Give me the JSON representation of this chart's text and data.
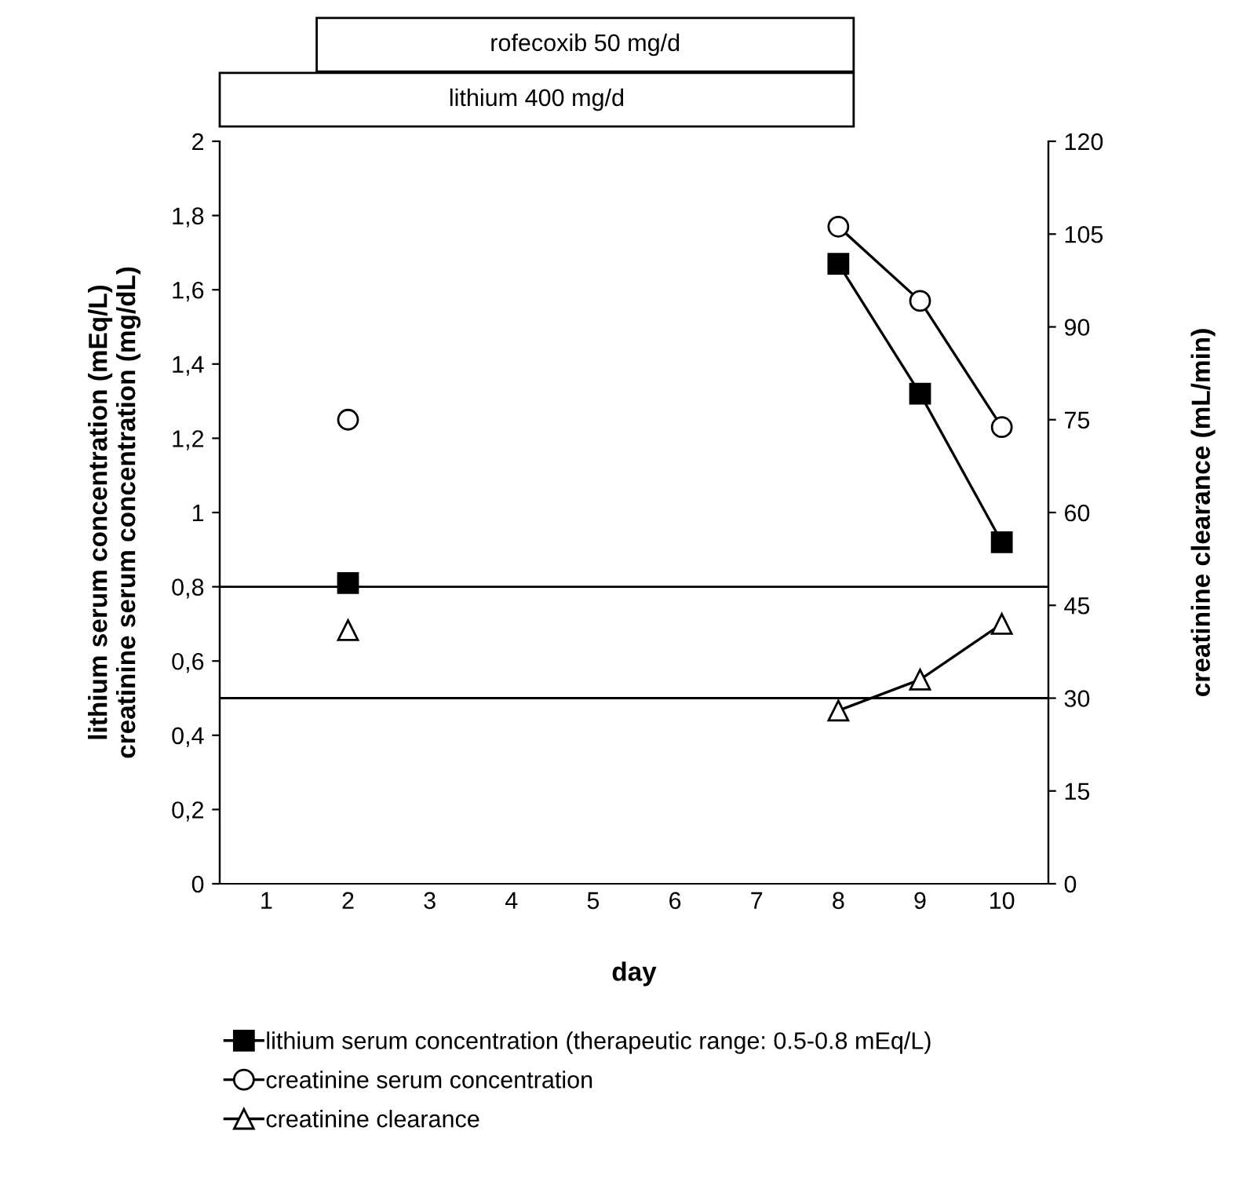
{
  "chart_data": {
    "type": "line",
    "xlabel": "day",
    "ylabel": "lithium serum concentration (mEq/L)\ncreatinine serum concentration (mg/dL)",
    "y2label": "creatinine clearance (mL/min)",
    "categories": [
      "1",
      "2",
      "3",
      "4",
      "5",
      "6",
      "7",
      "8",
      "9",
      "10"
    ],
    "series": [
      {
        "name": "lithium serum concentration (therapeutic range: 0.5-0.8 mEq/L)",
        "color": "#000000",
        "marker": "square",
        "values": [
          null,
          0.81,
          null,
          null,
          null,
          null,
          null,
          1.67,
          1.32,
          0.92
        ]
      },
      {
        "name": "creatinine serum concentration",
        "color": "#000000",
        "marker": "circle",
        "values": [
          null,
          1.25,
          null,
          null,
          null,
          null,
          null,
          1.77,
          1.57,
          1.23
        ]
      },
      {
        "name": "creatinine clearance",
        "color": "#000000",
        "marker": "triangle",
        "axis": "y2",
        "values": [
          null,
          41,
          null,
          null,
          null,
          null,
          null,
          28,
          33,
          42
        ]
      }
    ],
    "ylim": [
      0,
      2
    ],
    "yticks": [
      0,
      {
        "value": 0.2,
        "label": "0,2"
      },
      {
        "value": 0.4,
        "label": "0,4"
      },
      {
        "value": 0.6,
        "label": "0,6"
      },
      {
        "value": 0.8,
        "label": "0,8"
      },
      1,
      {
        "value": 1.2,
        "label": "1,2"
      },
      {
        "value": 1.4,
        "label": "1,4"
      },
      {
        "value": 1.6,
        "label": "1,6"
      },
      {
        "value": 1.8,
        "label": "1,8"
      },
      2
    ],
    "y2lim": [
      0,
      120
    ],
    "y2ticks": [
      0,
      15,
      30,
      45,
      60,
      75,
      90,
      105,
      120
    ],
    "ref_lines": [
      {
        "axis": "y",
        "value": 0.8,
        "color": "#000000"
      },
      {
        "axis": "y",
        "value": 0.5,
        "color": "#000000"
      }
    ],
    "annotations": [
      "lithium 400 mg/d",
      "rofecoxib 50 mg/d"
    ],
    "grid": false,
    "legend": "bottom",
    "line_style": "solid"
  }
}
